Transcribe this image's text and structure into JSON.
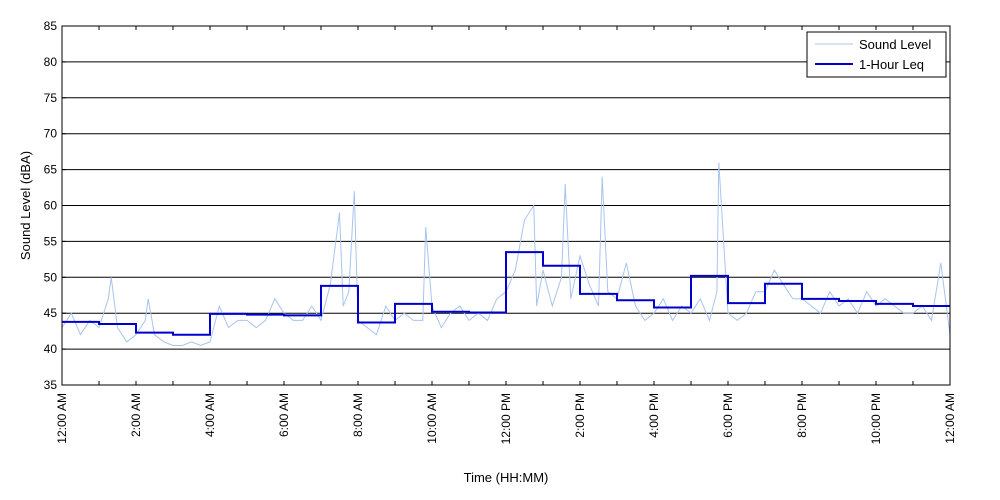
{
  "chart_data": {
    "type": "line",
    "xlabel": "Time (HH:MM)",
    "ylabel": "Sound Level (dBA)",
    "ylim": [
      35,
      85
    ],
    "yticks": [
      35,
      40,
      45,
      50,
      55,
      60,
      65,
      70,
      75,
      80,
      85
    ],
    "xlim": [
      0,
      24
    ],
    "xtick_hours": [
      0,
      2,
      4,
      6,
      8,
      10,
      12,
      14,
      16,
      18,
      20,
      22,
      24
    ],
    "xtick_labels": [
      "12:00 AM",
      "2:00 AM",
      "4:00 AM",
      "6:00 AM",
      "8:00 AM",
      "10:00 AM",
      "12:00 PM",
      "2:00 PM",
      "4:00 PM",
      "6:00 PM",
      "8:00 PM",
      "10:00 PM",
      "12:00 AM"
    ],
    "grid": "horizontal",
    "legend_position": "top-right",
    "series": [
      {
        "name": "Sound Level",
        "color": "#a8c4ee",
        "x": [
          0,
          0.25,
          0.5,
          0.75,
          1,
          1.25,
          1.33,
          1.5,
          1.75,
          2,
          2.25,
          2.33,
          2.5,
          2.75,
          3,
          3.25,
          3.5,
          3.75,
          4,
          4.25,
          4.5,
          4.75,
          5,
          5.25,
          5.5,
          5.75,
          6,
          6.25,
          6.5,
          6.75,
          7,
          7.25,
          7.5,
          7.6,
          7.75,
          7.9,
          8,
          8.25,
          8.5,
          8.75,
          9,
          9.25,
          9.5,
          9.75,
          9.83,
          10,
          10.25,
          10.5,
          10.75,
          11,
          11.25,
          11.5,
          11.75,
          12,
          12.25,
          12.5,
          12.75,
          12.83,
          13,
          13.25,
          13.5,
          13.6,
          13.75,
          14,
          14.25,
          14.5,
          14.6,
          14.75,
          15,
          15.25,
          15.5,
          15.75,
          16,
          16.25,
          16.5,
          16.75,
          17,
          17.25,
          17.5,
          17.7,
          17.75,
          18,
          18.25,
          18.5,
          18.75,
          19,
          19.25,
          19.5,
          19.75,
          20,
          20.25,
          20.5,
          20.75,
          21,
          21.25,
          21.5,
          21.75,
          22,
          22.25,
          22.5,
          22.75,
          23,
          23.25,
          23.5,
          23.75,
          24
        ],
        "y": [
          43,
          45,
          42,
          44,
          43,
          47,
          50,
          43,
          41,
          42,
          44,
          47,
          42,
          41,
          40.5,
          40.5,
          41,
          40.5,
          41,
          46,
          43,
          44,
          44,
          43,
          44,
          47,
          45,
          44,
          44,
          46,
          44,
          49,
          59,
          46,
          48,
          62,
          44,
          43,
          42,
          46,
          44,
          45,
          44,
          44,
          57,
          46,
          43,
          45,
          46,
          44,
          45,
          44,
          47,
          48,
          51,
          58,
          60,
          46,
          51,
          46,
          50,
          63,
          47,
          53,
          49,
          46,
          64,
          48,
          47,
          52,
          46,
          44,
          45,
          47,
          44,
          46,
          45,
          47,
          44,
          48,
          66,
          45,
          44,
          45,
          48,
          48,
          51,
          49,
          47,
          47,
          46,
          45,
          48,
          46,
          47,
          45,
          48,
          46,
          47,
          46,
          45,
          45,
          46,
          44,
          52,
          42
        ]
      },
      {
        "name": "1-Hour Leq",
        "color": "#0000cc",
        "x": [
          0,
          1,
          2,
          3,
          4,
          5,
          6,
          7,
          8,
          9,
          10,
          11,
          12,
          13,
          14,
          15,
          16,
          17,
          18,
          19,
          20,
          21,
          22,
          23
        ],
        "y": [
          43.8,
          43.5,
          42.3,
          42.0,
          44.9,
          44.8,
          44.7,
          48.8,
          43.7,
          46.3,
          45.2,
          45.1,
          53.5,
          51.6,
          47.7,
          46.8,
          45.8,
          50.2,
          46.4,
          49.1,
          47.0,
          46.7,
          46.3,
          46.0
        ]
      }
    ]
  }
}
